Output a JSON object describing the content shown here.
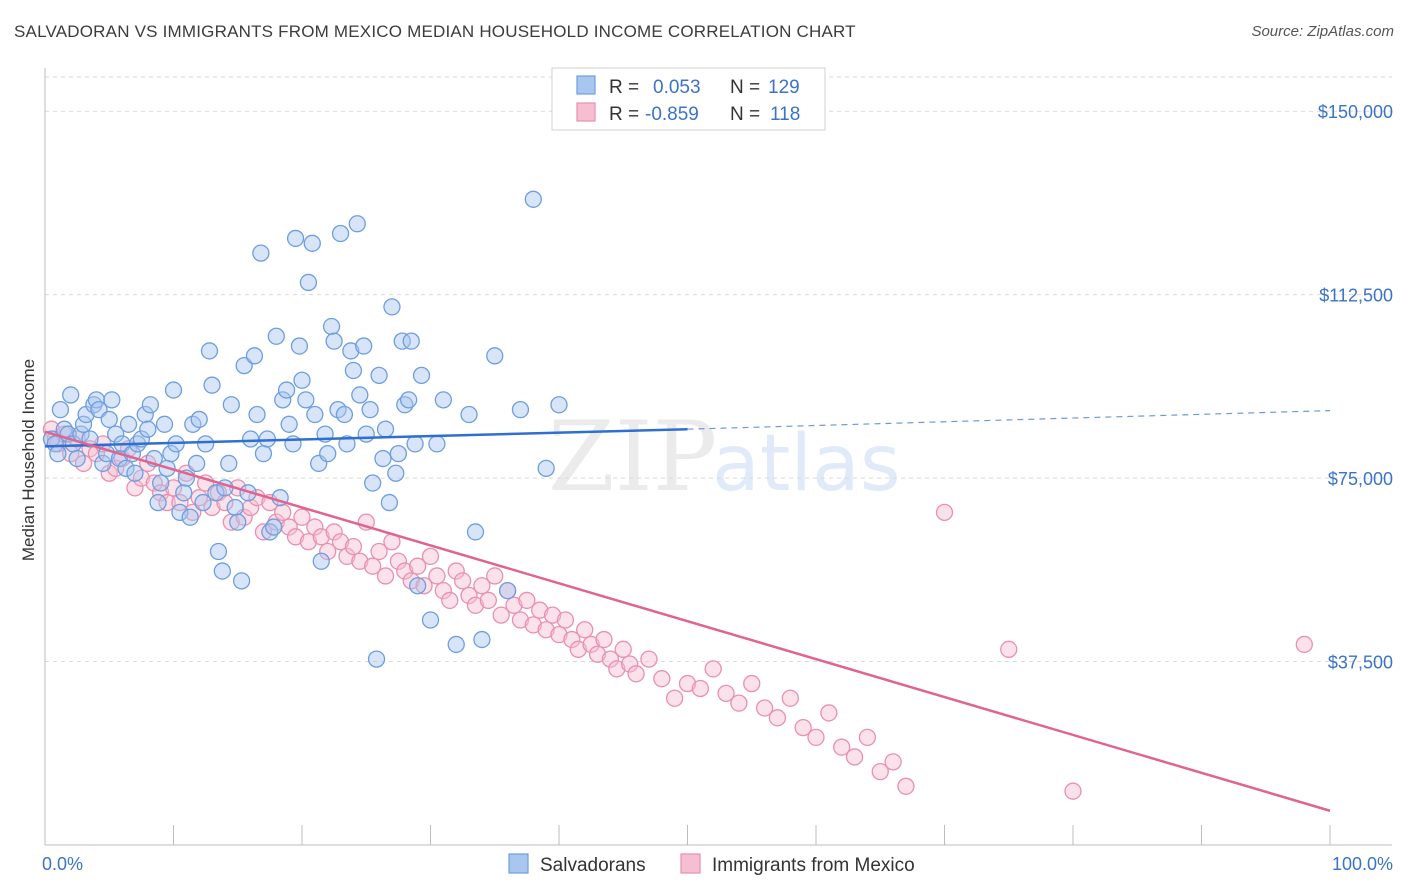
{
  "header": {
    "title": "SALVADORAN VS IMMIGRANTS FROM MEXICO MEDIAN HOUSEHOLD INCOME CORRELATION CHART",
    "source": "Source: ZipAtlas.com"
  },
  "watermark": {
    "zip": "ZIP",
    "atlas": "atlas"
  },
  "legend": {
    "rows": [
      {
        "r_label": "R =",
        "r_value": "0.053",
        "n_label": "N =",
        "n_value": "129"
      },
      {
        "r_label": "R =",
        "r_value": "-0.859",
        "n_label": "N =",
        "n_value": "118"
      }
    ]
  },
  "bottom_legend": {
    "items": [
      {
        "label": "Salvadorans"
      },
      {
        "label": "Immigrants from Mexico"
      }
    ]
  },
  "colors": {
    "blue_fill": "#a9c6ef",
    "blue_stroke": "#6d9ee0",
    "blue_line": "#2f6fcf",
    "pink_fill": "#f6bfd1",
    "pink_stroke": "#ea8fb0",
    "pink_line": "#e0648f",
    "grid": "#d9d9d9",
    "tick_text": "#3b73c9"
  },
  "chart_data": {
    "type": "scatter",
    "title": "SALVADORAN VS IMMIGRANTS FROM MEXICO MEDIAN HOUSEHOLD INCOME CORRELATION CHART",
    "xlabel": "",
    "ylabel": "Median Household Income",
    "xlim": [
      0,
      100
    ],
    "ylim": [
      0,
      157000
    ],
    "x_tick_labels": [
      "0.0%",
      "100.0%"
    ],
    "y_ticks": [
      37500,
      75000,
      112500,
      150000
    ],
    "y_tick_labels": [
      "$37,500",
      "$75,000",
      "$112,500",
      "$150,000"
    ],
    "grid": true,
    "legend_placement": "top-center",
    "series": [
      {
        "name": "Salvadorans",
        "r": 0.053,
        "n": 129,
        "trend": {
          "x0": 0,
          "y0": 81500,
          "x1": 50,
          "y1": 85000,
          "dashed_to_x": 100,
          "dashed_to_y": 88800
        },
        "points": [
          [
            0.5,
            83
          ],
          [
            0.8,
            82
          ],
          [
            1.0,
            80
          ],
          [
            1.2,
            89
          ],
          [
            1.5,
            85
          ],
          [
            1.8,
            84
          ],
          [
            2.0,
            92
          ],
          [
            2.2,
            82
          ],
          [
            2.5,
            79
          ],
          [
            2.8,
            84
          ],
          [
            3.0,
            86
          ],
          [
            3.2,
            88
          ],
          [
            3.5,
            83
          ],
          [
            3.8,
            90
          ],
          [
            4.0,
            91
          ],
          [
            4.2,
            89
          ],
          [
            4.5,
            78
          ],
          [
            4.8,
            80
          ],
          [
            5.0,
            87
          ],
          [
            5.2,
            91
          ],
          [
            5.5,
            84
          ],
          [
            5.8,
            79
          ],
          [
            6.0,
            82
          ],
          [
            6.3,
            77
          ],
          [
            6.5,
            86
          ],
          [
            6.8,
            80
          ],
          [
            7.0,
            76
          ],
          [
            7.2,
            82
          ],
          [
            7.5,
            83
          ],
          [
            7.8,
            88
          ],
          [
            8.0,
            85
          ],
          [
            8.2,
            90
          ],
          [
            8.5,
            79
          ],
          [
            8.8,
            70
          ],
          [
            9.0,
            74
          ],
          [
            9.3,
            86
          ],
          [
            9.5,
            77
          ],
          [
            9.8,
            80
          ],
          [
            10.0,
            93
          ],
          [
            10.2,
            82
          ],
          [
            10.5,
            68
          ],
          [
            10.8,
            72
          ],
          [
            11.0,
            75
          ],
          [
            11.3,
            67
          ],
          [
            11.5,
            86
          ],
          [
            11.8,
            78
          ],
          [
            12.0,
            87
          ],
          [
            12.3,
            70
          ],
          [
            12.5,
            82
          ],
          [
            12.8,
            101
          ],
          [
            13.0,
            94
          ],
          [
            13.3,
            72
          ],
          [
            13.5,
            60
          ],
          [
            13.8,
            56
          ],
          [
            14.0,
            73
          ],
          [
            14.3,
            78
          ],
          [
            14.5,
            90
          ],
          [
            14.8,
            69
          ],
          [
            15.0,
            66
          ],
          [
            15.3,
            54
          ],
          [
            15.5,
            98
          ],
          [
            15.8,
            72
          ],
          [
            16.0,
            83
          ],
          [
            16.3,
            100
          ],
          [
            16.5,
            88
          ],
          [
            16.8,
            121
          ],
          [
            17.0,
            80
          ],
          [
            17.3,
            83
          ],
          [
            17.5,
            64
          ],
          [
            17.8,
            65
          ],
          [
            18.0,
            104
          ],
          [
            18.3,
            71
          ],
          [
            18.5,
            91
          ],
          [
            18.8,
            93
          ],
          [
            19.0,
            86
          ],
          [
            19.3,
            82
          ],
          [
            19.5,
            124
          ],
          [
            19.8,
            102
          ],
          [
            20.0,
            95
          ],
          [
            20.3,
            91
          ],
          [
            20.5,
            115
          ],
          [
            20.8,
            123
          ],
          [
            21.0,
            88
          ],
          [
            21.3,
            78
          ],
          [
            21.5,
            58
          ],
          [
            21.8,
            84
          ],
          [
            22.0,
            80
          ],
          [
            22.3,
            106
          ],
          [
            22.5,
            103
          ],
          [
            22.8,
            89
          ],
          [
            23.0,
            125
          ],
          [
            23.3,
            88
          ],
          [
            23.5,
            82
          ],
          [
            23.8,
            101
          ],
          [
            24.0,
            97
          ],
          [
            24.3,
            127
          ],
          [
            24.5,
            92
          ],
          [
            24.8,
            102
          ],
          [
            25.0,
            84
          ],
          [
            25.3,
            89
          ],
          [
            25.5,
            74
          ],
          [
            25.8,
            38
          ],
          [
            26.0,
            96
          ],
          [
            26.3,
            79
          ],
          [
            26.5,
            85
          ],
          [
            26.8,
            70
          ],
          [
            27.0,
            110
          ],
          [
            27.3,
            76
          ],
          [
            27.5,
            80
          ],
          [
            27.8,
            103
          ],
          [
            28.0,
            90
          ],
          [
            28.3,
            91
          ],
          [
            28.5,
            103
          ],
          [
            28.8,
            82
          ],
          [
            29.0,
            53
          ],
          [
            29.3,
            96
          ],
          [
            30.0,
            46
          ],
          [
            30.5,
            82
          ],
          [
            31.0,
            91
          ],
          [
            32.0,
            41
          ],
          [
            33.0,
            88
          ],
          [
            33.5,
            64
          ],
          [
            34.0,
            42
          ],
          [
            35.0,
            100
          ],
          [
            36.0,
            52
          ],
          [
            37.0,
            89
          ],
          [
            38.0,
            132
          ],
          [
            39.0,
            77
          ],
          [
            40.0,
            90
          ]
        ]
      },
      {
        "name": "Immigrants from Mexico",
        "r": -0.859,
        "n": 118,
        "trend": {
          "x0": 0,
          "y0": 84500,
          "x1": 100,
          "y1": 7000
        },
        "points": [
          [
            0.5,
            85
          ],
          [
            0.8,
            83
          ],
          [
            1.0,
            82
          ],
          [
            1.5,
            84
          ],
          [
            2.0,
            80
          ],
          [
            2.5,
            83
          ],
          [
            3.0,
            78
          ],
          [
            3.5,
            81
          ],
          [
            4.0,
            80
          ],
          [
            4.5,
            82
          ],
          [
            5.0,
            76
          ],
          [
            5.5,
            77
          ],
          [
            6.0,
            79
          ],
          [
            6.5,
            81
          ],
          [
            7.0,
            73
          ],
          [
            7.5,
            75
          ],
          [
            8.0,
            78
          ],
          [
            8.5,
            74
          ],
          [
            9.0,
            72
          ],
          [
            9.5,
            70
          ],
          [
            10.0,
            73
          ],
          [
            10.5,
            70
          ],
          [
            11.0,
            76
          ],
          [
            11.5,
            68
          ],
          [
            12.0,
            71
          ],
          [
            12.5,
            74
          ],
          [
            13.0,
            69
          ],
          [
            13.5,
            72
          ],
          [
            14.0,
            70
          ],
          [
            14.5,
            66
          ],
          [
            15.0,
            73
          ],
          [
            15.5,
            67
          ],
          [
            16.0,
            69
          ],
          [
            16.5,
            71
          ],
          [
            17.0,
            64
          ],
          [
            17.5,
            70
          ],
          [
            18.0,
            66
          ],
          [
            18.5,
            68
          ],
          [
            19.0,
            65
          ],
          [
            19.5,
            63
          ],
          [
            20.0,
            67
          ],
          [
            20.5,
            62
          ],
          [
            21.0,
            65
          ],
          [
            21.5,
            63
          ],
          [
            22.0,
            60
          ],
          [
            22.5,
            64
          ],
          [
            23.0,
            62
          ],
          [
            23.5,
            59
          ],
          [
            24.0,
            61
          ],
          [
            24.5,
            58
          ],
          [
            25.0,
            66
          ],
          [
            25.5,
            57
          ],
          [
            26.0,
            60
          ],
          [
            26.5,
            55
          ],
          [
            27.0,
            62
          ],
          [
            27.5,
            58
          ],
          [
            28.0,
            56
          ],
          [
            28.5,
            54
          ],
          [
            29.0,
            57
          ],
          [
            29.5,
            53
          ],
          [
            30.0,
            59
          ],
          [
            30.5,
            55
          ],
          [
            31.0,
            52
          ],
          [
            31.5,
            50
          ],
          [
            32.0,
            56
          ],
          [
            32.5,
            54
          ],
          [
            33.0,
            51
          ],
          [
            33.5,
            49
          ],
          [
            34.0,
            53
          ],
          [
            34.5,
            50
          ],
          [
            35.0,
            55
          ],
          [
            35.5,
            47
          ],
          [
            36.0,
            52
          ],
          [
            36.5,
            49
          ],
          [
            37.0,
            46
          ],
          [
            37.5,
            50
          ],
          [
            38.0,
            45
          ],
          [
            38.5,
            48
          ],
          [
            39.0,
            44
          ],
          [
            39.5,
            47
          ],
          [
            40.0,
            43
          ],
          [
            40.5,
            46
          ],
          [
            41.0,
            42
          ],
          [
            41.5,
            40
          ],
          [
            42.0,
            44
          ],
          [
            42.5,
            41
          ],
          [
            43.0,
            39
          ],
          [
            43.5,
            42
          ],
          [
            44.0,
            38
          ],
          [
            44.5,
            36
          ],
          [
            45.0,
            40
          ],
          [
            45.5,
            37
          ],
          [
            46.0,
            35
          ],
          [
            47.0,
            38
          ],
          [
            48.0,
            34
          ],
          [
            49.0,
            30
          ],
          [
            50.0,
            33
          ],
          [
            51.0,
            32
          ],
          [
            52.0,
            36
          ],
          [
            53.0,
            31
          ],
          [
            54.0,
            29
          ],
          [
            55.0,
            33
          ],
          [
            56.0,
            28
          ],
          [
            57.0,
            26
          ],
          [
            58.0,
            30
          ],
          [
            59.0,
            24
          ],
          [
            60.0,
            22
          ],
          [
            61.0,
            27
          ],
          [
            62.0,
            20
          ],
          [
            63.0,
            18
          ],
          [
            64.0,
            22
          ],
          [
            65.0,
            15
          ],
          [
            66.0,
            17
          ],
          [
            67.0,
            12
          ],
          [
            70.0,
            68
          ],
          [
            75.0,
            40
          ],
          [
            80.0,
            11
          ],
          [
            98.0,
            41
          ]
        ]
      }
    ]
  }
}
